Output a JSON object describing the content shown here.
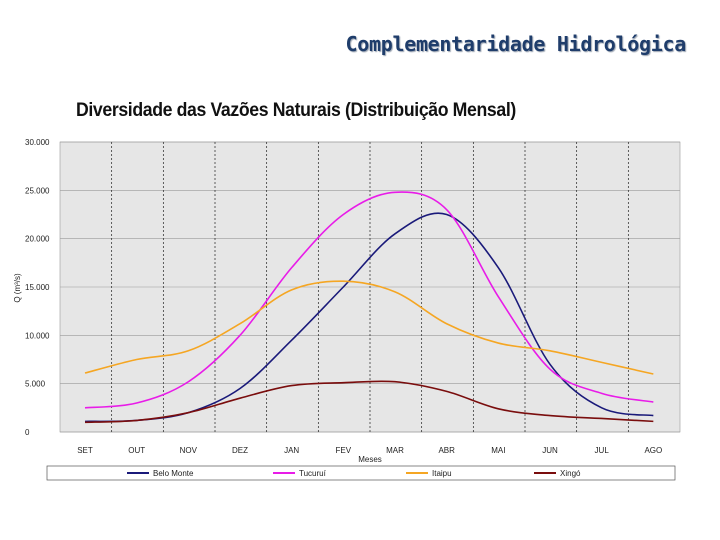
{
  "slide": {
    "title": "Complementaridade Hidrológica"
  },
  "chart_data": {
    "type": "line",
    "title": "Diversidade das Vazões Naturais (Distribuição Mensal)",
    "xlabel": "Meses",
    "ylabel": "Q (m³/s)",
    "categories": [
      "SET",
      "OUT",
      "NOV",
      "DEZ",
      "JAN",
      "FEV",
      "MAR",
      "ABR",
      "MAI",
      "JUN",
      "JUL",
      "AGO"
    ],
    "ylim": [
      0,
      30000
    ],
    "yticks": [
      0,
      5000,
      10000,
      15000,
      20000,
      25000,
      30000
    ],
    "ytick_labels": [
      "0",
      "5.000",
      "10.000",
      "15.000",
      "20.000",
      "25.000",
      "30.000"
    ],
    "grid": true,
    "legend_position": "bottom",
    "series": [
      {
        "name": "Belo Monte",
        "color": "#1a1a7a",
        "values": [
          1100,
          1200,
          2000,
          4500,
          9500,
          15000,
          20500,
          22500,
          17000,
          7000,
          2500,
          1700
        ]
      },
      {
        "name": "Tucuruí",
        "color": "#e81ce8",
        "values": [
          2500,
          3000,
          5200,
          10000,
          17000,
          22500,
          24800,
          23000,
          14000,
          6500,
          4000,
          3100
        ]
      },
      {
        "name": "Itaipu",
        "color": "#f5a623",
        "values": [
          6100,
          7500,
          8400,
          11200,
          14700,
          15600,
          14500,
          11200,
          9200,
          8400,
          7200,
          6000
        ]
      },
      {
        "name": "Xingó",
        "color": "#7a0d0d",
        "values": [
          1000,
          1200,
          2000,
          3500,
          4800,
          5100,
          5200,
          4200,
          2400,
          1700,
          1400,
          1100
        ]
      }
    ]
  }
}
